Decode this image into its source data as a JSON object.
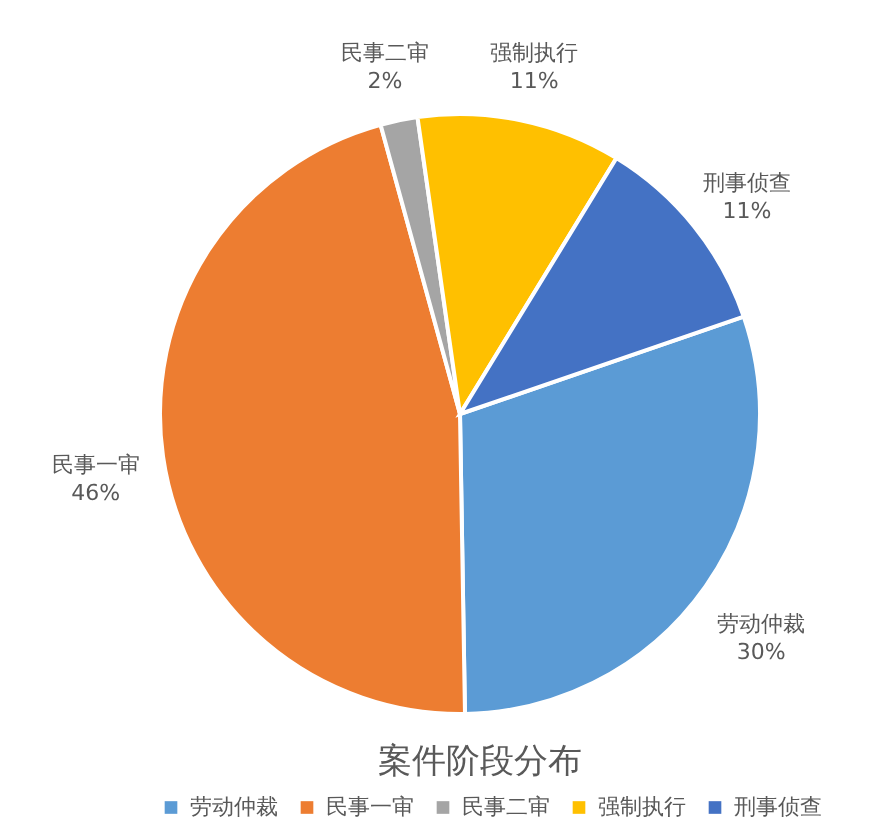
{
  "chart_data": {
    "type": "pie",
    "title": "案件阶段分布",
    "categories": [
      "劳动仲裁",
      "民事一审",
      "民事二审",
      "强制执行",
      "刑事侦查"
    ],
    "values": [
      30,
      46,
      2,
      11,
      11
    ],
    "colors": [
      "#5b9bd5",
      "#ed7d31",
      "#a5a5a5",
      "#ffc000",
      "#4472c4"
    ],
    "value_labels": [
      "30%",
      "46%",
      "2%",
      "11%",
      "11%"
    ],
    "legend": "bottom"
  }
}
